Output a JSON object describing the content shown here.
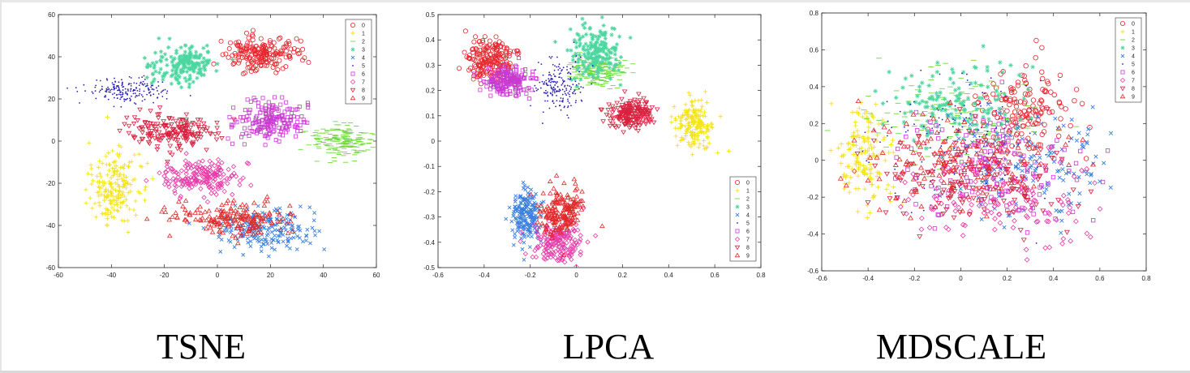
{
  "captions": [
    "TSNE",
    "LPCA",
    "MDSCALE"
  ],
  "colors": {
    "c0": "#e8242c",
    "c1": "#f5e31a",
    "c2": "#6fd93a",
    "c3": "#4cd6a0",
    "c4": "#3a7fe0",
    "c5": "#2a1fb8",
    "c6": "#c93ad1",
    "c7": "#e83aa8",
    "c8": "#d9213f",
    "c9": "#e02b2b"
  },
  "chart_data": [
    {
      "type": "scatter",
      "xlim": [
        -60,
        60
      ],
      "ylim": [
        -60,
        60
      ],
      "xticks": [
        "-60",
        "-40",
        "-20",
        "0",
        "20",
        "40",
        "60"
      ],
      "yticks": [
        "60",
        "40",
        "20",
        "0",
        "-20",
        "-40",
        "-60"
      ],
      "legend": {
        "position": "top-right",
        "labels": [
          "0",
          "1",
          "2",
          "3",
          "4",
          "5",
          "6",
          "7",
          "8",
          "9"
        ]
      },
      "series": [
        {
          "name": "0",
          "cx": 17,
          "cy": 41,
          "sx": 7,
          "sy": 4
        },
        {
          "name": "1",
          "cx": -39,
          "cy": -22,
          "sx": 5,
          "sy": 8
        },
        {
          "name": "2",
          "cx": 47,
          "cy": 0,
          "sx": 6,
          "sy": 4
        },
        {
          "name": "3",
          "cx": -13,
          "cy": 36,
          "sx": 6,
          "sy": 5
        },
        {
          "name": "4",
          "cx": 18,
          "cy": -42,
          "sx": 9,
          "sy": 5
        },
        {
          "name": "5",
          "cx": -33,
          "cy": 24,
          "sx": 8,
          "sy": 3
        },
        {
          "name": "6",
          "cx": 20,
          "cy": 10,
          "sx": 7,
          "sy": 5
        },
        {
          "name": "7",
          "cx": -7,
          "cy": -17,
          "sx": 7,
          "sy": 4
        },
        {
          "name": "8",
          "cx": -17,
          "cy": 5,
          "sx": 9,
          "sy": 4
        },
        {
          "name": "9",
          "cx": 5,
          "cy": -37,
          "sx": 13,
          "sy": 4
        }
      ]
    },
    {
      "type": "scatter",
      "xlim": [
        -0.6,
        0.8
      ],
      "ylim": [
        -0.5,
        0.5
      ],
      "xticks": [
        "-0.6",
        "-0.4",
        "-0.2",
        "0",
        "0.2",
        "0.4",
        "0.6",
        "0.8"
      ],
      "yticks": [
        "0.5",
        "0.4",
        "0.3",
        "0.2",
        "0.1",
        "0",
        "-0.1",
        "-0.2",
        "-0.3",
        "-0.4",
        "-0.5"
      ],
      "legend": {
        "position": "bottom-right",
        "labels": [
          "0",
          "1",
          "2",
          "3",
          "4",
          "5",
          "6",
          "7",
          "8",
          "9"
        ]
      },
      "series": [
        {
          "name": "0",
          "cx": -0.37,
          "cy": 0.32,
          "sx": 0.05,
          "sy": 0.04
        },
        {
          "name": "1",
          "cx": 0.51,
          "cy": 0.06,
          "sx": 0.04,
          "sy": 0.05
        },
        {
          "name": "2",
          "cx": 0.09,
          "cy": 0.28,
          "sx": 0.06,
          "sy": 0.03
        },
        {
          "name": "3",
          "cx": 0.09,
          "cy": 0.35,
          "sx": 0.05,
          "sy": 0.05
        },
        {
          "name": "4",
          "cx": -0.22,
          "cy": -0.29,
          "sx": 0.03,
          "sy": 0.05
        },
        {
          "name": "5",
          "cx": -0.07,
          "cy": 0.22,
          "sx": 0.05,
          "sy": 0.05
        },
        {
          "name": "6",
          "cx": -0.3,
          "cy": 0.24,
          "sx": 0.05,
          "sy": 0.03
        },
        {
          "name": "7",
          "cx": -0.08,
          "cy": -0.4,
          "sx": 0.05,
          "sy": 0.04
        },
        {
          "name": "8",
          "cx": 0.24,
          "cy": 0.11,
          "sx": 0.05,
          "sy": 0.03
        },
        {
          "name": "9",
          "cx": -0.07,
          "cy": -0.28,
          "sx": 0.05,
          "sy": 0.05
        }
      ]
    },
    {
      "type": "scatter",
      "xlim": [
        -0.65,
        0.85
      ],
      "ylim": [
        -0.6,
        0.8
      ],
      "xticks": [
        "-0.6",
        "-0.4",
        "-0.2",
        "0",
        "0.2",
        "0.4",
        "0.6",
        "0.8"
      ],
      "yticks": [
        "0.8",
        "0.6",
        "0.4",
        "0.2",
        "0",
        "-0.2",
        "-0.4",
        "-0.6"
      ],
      "legend": {
        "position": "top-right",
        "labels": [
          "0",
          "1",
          "2",
          "3",
          "4",
          "5",
          "6",
          "7",
          "8",
          "9"
        ]
      },
      "series": [
        {
          "name": "0",
          "cx": 0.28,
          "cy": 0.28,
          "sx": 0.12,
          "sy": 0.13
        },
        {
          "name": "1",
          "cx": -0.45,
          "cy": 0.02,
          "sx": 0.06,
          "sy": 0.15
        },
        {
          "name": "2",
          "cx": -0.05,
          "cy": 0.25,
          "sx": 0.2,
          "sy": 0.12
        },
        {
          "name": "3",
          "cx": -0.02,
          "cy": 0.3,
          "sx": 0.16,
          "sy": 0.12
        },
        {
          "name": "4",
          "cx": 0.3,
          "cy": -0.05,
          "sx": 0.2,
          "sy": 0.14
        },
        {
          "name": "5",
          "cx": 0.0,
          "cy": 0.1,
          "sx": 0.22,
          "sy": 0.18
        },
        {
          "name": "6",
          "cx": 0.15,
          "cy": -0.05,
          "sx": 0.22,
          "sy": 0.15
        },
        {
          "name": "7",
          "cx": 0.15,
          "cy": -0.2,
          "sx": 0.22,
          "sy": 0.13
        },
        {
          "name": "8",
          "cx": 0.05,
          "cy": -0.1,
          "sx": 0.22,
          "sy": 0.12
        },
        {
          "name": "9",
          "cx": 0.0,
          "cy": -0.02,
          "sx": 0.25,
          "sy": 0.13
        }
      ]
    }
  ]
}
